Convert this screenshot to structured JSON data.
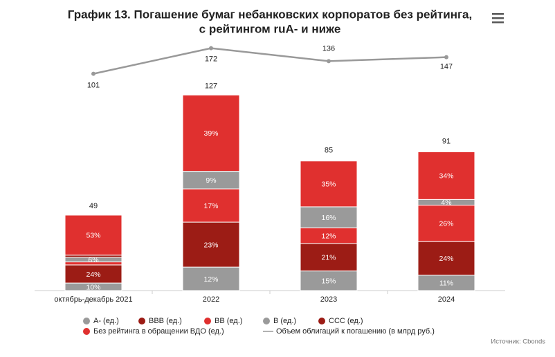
{
  "chart_data": {
    "type": "bar",
    "title": [
      "График 13. Погашение бумаг небанковских корпоратов без рейтинга,",
      "с рейтингом ruA- и ниже"
    ],
    "categories": [
      "октябрь-декабрь 2021",
      "2022",
      "2023",
      "2024"
    ],
    "totals": [
      49,
      127,
      85,
      91
    ],
    "ylim": [
      0,
      164
    ],
    "series": [
      {
        "name": "A- (ед.)",
        "color": "#9a9a9a",
        "values": [
          10,
          12,
          15,
          11
        ],
        "value_labels": [
          "10%",
          "12%",
          "15%",
          "11%"
        ]
      },
      {
        "name": "BBB (ед.)",
        "color": "#9c1c15",
        "values": [
          24,
          23,
          21,
          24
        ],
        "value_labels": [
          "24%",
          "23%",
          "21%",
          "24%"
        ]
      },
      {
        "name": "BB (ед.)",
        "color": "#e0302f",
        "values": [
          4,
          17,
          12,
          26
        ],
        "value_labels": [
          null,
          "17%",
          "12%",
          "26%"
        ]
      },
      {
        "name": "B (ед.)",
        "color": "#9a9a9a",
        "values": [
          6,
          9,
          16,
          4
        ],
        "value_labels": [
          "6%",
          "9%",
          "16%",
          "4%"
        ]
      },
      {
        "name": "CCC (ед.)",
        "color": "#9c1c15",
        "values": [
          3,
          0,
          0,
          0
        ],
        "value_labels": [
          null,
          null,
          null,
          null
        ]
      },
      {
        "name": "Без рейтинга в обращении ВДО (ед.)",
        "color": "#e0302f",
        "values": [
          53,
          39,
          35,
          34
        ],
        "value_labels": [
          "53%",
          "39%",
          "35%",
          "34%"
        ]
      }
    ],
    "line": {
      "name": "Объем облигаций к погашению (в млрд руб.)",
      "color": "#999999",
      "axis": "y2",
      "values": [
        101,
        172,
        136,
        147
      ]
    },
    "y2lim": [
      -500,
      200
    ],
    "source": "Источник: Cbonds"
  }
}
